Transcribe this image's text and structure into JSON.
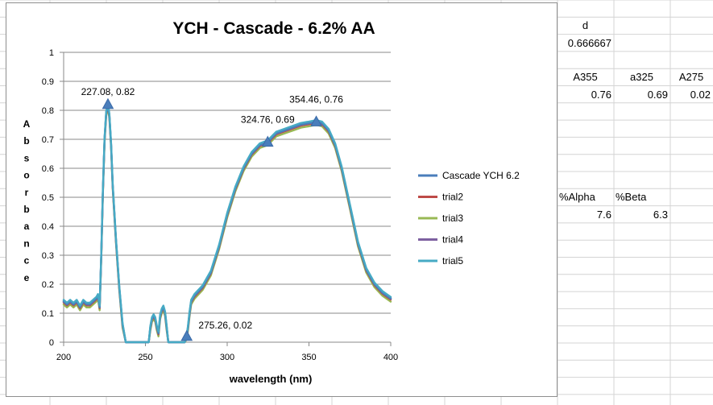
{
  "sheet": {
    "cells": [
      {
        "id": "d-label",
        "text": "d",
        "col": 0,
        "row": 1,
        "align": "center"
      },
      {
        "id": "d-value",
        "text": "0.666667",
        "col": 0,
        "row": 2,
        "align": "right"
      },
      {
        "id": "a355-label",
        "text": "A355",
        "col": 0,
        "row": 4,
        "align": "center"
      },
      {
        "id": "a325-label",
        "text": "a325",
        "col": 1,
        "row": 4,
        "align": "center"
      },
      {
        "id": "a275-label",
        "text": "A275",
        "col": 2,
        "row": 4,
        "align": "center"
      },
      {
        "id": "a355-value",
        "text": "0.76",
        "col": 0,
        "row": 5,
        "align": "right"
      },
      {
        "id": "a325-value",
        "text": "0.69",
        "col": 1,
        "row": 5,
        "align": "right"
      },
      {
        "id": "a275-value",
        "text": "0.02",
        "col": 2,
        "row": 5,
        "align": "right"
      },
      {
        "id": "alpha-label",
        "text": "%Alpha",
        "col": 0,
        "row": 11,
        "align": "left"
      },
      {
        "id": "beta-label",
        "text": "%Beta",
        "col": 1,
        "row": 11,
        "align": "left"
      },
      {
        "id": "alpha-value",
        "text": "7.6",
        "col": 0,
        "row": 12,
        "align": "right"
      },
      {
        "id": "beta-value",
        "text": "6.3",
        "col": 1,
        "row": 12,
        "align": "right"
      }
    ]
  },
  "chart_data": {
    "type": "line",
    "title": "YCH - Cascade - 6.2% AA",
    "xlabel": "wavelength (nm)",
    "ylabel": "Absorbance",
    "xlim": [
      200,
      400
    ],
    "ylim": [
      0,
      1
    ],
    "xticks": [
      200,
      250,
      300,
      350,
      400
    ],
    "yticks": [
      0,
      0.1,
      0.2,
      0.3,
      0.4,
      0.5,
      0.6,
      0.7,
      0.8,
      0.9,
      1
    ],
    "grid": "horizontal",
    "legend_position": "right",
    "base_curve": {
      "x": [
        200,
        202,
        204,
        206,
        208,
        210,
        212,
        214,
        216,
        218,
        220,
        221,
        222,
        223,
        224,
        225,
        226,
        227.08,
        228,
        229,
        230,
        232,
        234,
        236,
        238,
        252,
        253,
        254,
        255,
        256,
        257,
        258,
        259,
        260,
        261,
        262,
        263,
        264,
        265,
        266,
        267,
        268,
        269,
        270,
        271,
        272,
        273,
        274,
        275.26,
        276,
        277,
        278,
        280,
        285,
        290,
        295,
        300,
        305,
        310,
        315,
        320,
        324.76,
        330,
        335,
        340,
        345,
        350,
        354.46,
        358,
        362,
        366,
        370,
        375,
        380,
        385,
        390,
        395,
        400
      ],
      "y": [
        0.14,
        0.13,
        0.14,
        0.13,
        0.14,
        0.12,
        0.14,
        0.13,
        0.13,
        0.14,
        0.15,
        0.16,
        0.12,
        0.3,
        0.52,
        0.7,
        0.79,
        0.82,
        0.78,
        0.68,
        0.54,
        0.35,
        0.19,
        0.06,
        0.0,
        0.0,
        0.05,
        0.08,
        0.09,
        0.08,
        0.05,
        0.03,
        0.09,
        0.11,
        0.12,
        0.1,
        0.05,
        0.0,
        0.0,
        0.0,
        0.0,
        0.0,
        0.0,
        0.0,
        0.0,
        0.0,
        0.0,
        0.0,
        0.02,
        0.05,
        0.1,
        0.14,
        0.16,
        0.19,
        0.24,
        0.33,
        0.44,
        0.53,
        0.6,
        0.65,
        0.68,
        0.69,
        0.72,
        0.73,
        0.74,
        0.75,
        0.755,
        0.76,
        0.755,
        0.73,
        0.68,
        0.6,
        0.47,
        0.34,
        0.25,
        0.2,
        0.17,
        0.15
      ]
    },
    "series": [
      {
        "name": "Cascade YCH 6.2",
        "color": "#4a7ebb",
        "offset": 0.0
      },
      {
        "name": "trial2",
        "color": "#be4b48",
        "offset": -0.003
      },
      {
        "name": "trial3",
        "color": "#98b954",
        "offset": -0.01
      },
      {
        "name": "trial4",
        "color": "#7d60a0",
        "offset": 0.002
      },
      {
        "name": "trial5",
        "color": "#46aac4",
        "offset": 0.006
      }
    ],
    "markers": [
      {
        "x": 227.08,
        "y": 0.82,
        "label": "227.08, 0.82"
      },
      {
        "x": 324.76,
        "y": 0.69,
        "label": "324.76, 0.69"
      },
      {
        "x": 354.46,
        "y": 0.76,
        "label": "354.46, 0.76"
      },
      {
        "x": 275.26,
        "y": 0.02,
        "label": "275.26, 0.02"
      }
    ]
  }
}
